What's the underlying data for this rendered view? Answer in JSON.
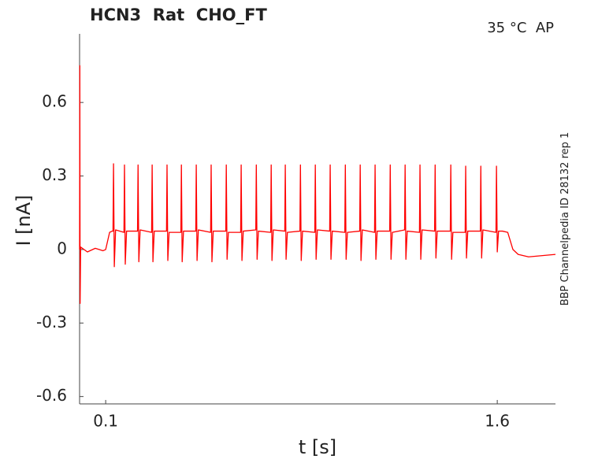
{
  "chart_data": {
    "type": "line",
    "title": "HCN3  Rat  CHO_FT",
    "subtitle": "35 °C  AP",
    "side_note": "BBP Channelpedia ID 28132 rep 1",
    "x_label": "t [s]",
    "y_label": "I [nA]",
    "color": "#ff0000",
    "xlim": [
      0,
      1.823
    ],
    "ylim": [
      -0.63,
      0.88
    ],
    "xticks": [
      0.1,
      1.6
    ],
    "yticks": [
      0.6,
      0.3,
      0,
      -0.3,
      -0.6
    ],
    "grid": false,
    "x": [
      0.0,
      0.001,
      0.002,
      0.004,
      0.03,
      0.06,
      0.09,
      0.1,
      0.115,
      0.125,
      0.128,
      0.13,
      0.133,
      0.138,
      0.17,
      0.172,
      0.175,
      0.18,
      0.222,
      0.224,
      0.227,
      0.232,
      0.276,
      0.278,
      0.281,
      0.286,
      0.333,
      0.335,
      0.338,
      0.343,
      0.388,
      0.39,
      0.393,
      0.398,
      0.445,
      0.447,
      0.45,
      0.455,
      0.502,
      0.504,
      0.507,
      0.512,
      0.56,
      0.562,
      0.565,
      0.57,
      0.617,
      0.619,
      0.622,
      0.627,
      0.675,
      0.677,
      0.68,
      0.685,
      0.732,
      0.734,
      0.737,
      0.742,
      0.786,
      0.788,
      0.791,
      0.796,
      0.844,
      0.846,
      0.849,
      0.854,
      0.901,
      0.903,
      0.906,
      0.911,
      0.958,
      0.96,
      0.963,
      0.968,
      1.016,
      1.018,
      1.021,
      1.026,
      1.073,
      1.075,
      1.078,
      1.083,
      1.13,
      1.132,
      1.135,
      1.14,
      1.188,
      1.19,
      1.193,
      1.198,
      1.245,
      1.247,
      1.25,
      1.255,
      1.302,
      1.304,
      1.307,
      1.312,
      1.36,
      1.362,
      1.365,
      1.37,
      1.42,
      1.422,
      1.425,
      1.43,
      1.477,
      1.479,
      1.482,
      1.487,
      1.535,
      1.537,
      1.54,
      1.545,
      1.595,
      1.597,
      1.6,
      1.605,
      1.62,
      1.64,
      1.66,
      1.68,
      1.72,
      1.823
    ],
    "values": [
      0.0,
      0.75,
      -0.22,
      0.01,
      -0.01,
      0.005,
      -0.005,
      0.0,
      0.07,
      0.075,
      0.075,
      0.35,
      -0.07,
      0.08,
      0.07,
      0.345,
      -0.06,
      0.075,
      0.075,
      0.345,
      -0.05,
      0.08,
      0.07,
      0.345,
      -0.05,
      0.075,
      0.075,
      0.345,
      -0.045,
      0.07,
      0.07,
      0.345,
      -0.05,
      0.075,
      0.075,
      0.345,
      -0.045,
      0.08,
      0.07,
      0.345,
      -0.05,
      0.075,
      0.075,
      0.345,
      -0.04,
      0.07,
      0.07,
      0.345,
      -0.045,
      0.075,
      0.08,
      0.345,
      -0.04,
      0.075,
      0.07,
      0.345,
      -0.045,
      0.08,
      0.075,
      0.345,
      -0.04,
      0.07,
      0.075,
      0.345,
      -0.045,
      0.075,
      0.07,
      0.345,
      -0.04,
      0.08,
      0.075,
      0.345,
      -0.04,
      0.075,
      0.07,
      0.345,
      -0.04,
      0.07,
      0.075,
      0.345,
      -0.045,
      0.08,
      0.07,
      0.345,
      -0.04,
      0.075,
      0.075,
      0.345,
      -0.04,
      0.07,
      0.08,
      0.345,
      -0.04,
      0.075,
      0.07,
      0.345,
      -0.04,
      0.08,
      0.075,
      0.345,
      -0.035,
      0.075,
      0.075,
      0.345,
      -0.04,
      0.07,
      0.07,
      0.34,
      -0.035,
      0.075,
      0.075,
      0.34,
      -0.035,
      0.08,
      0.07,
      0.34,
      -0.01,
      0.075,
      0.075,
      0.07,
      0.0,
      -0.02,
      -0.03,
      -0.02
    ]
  }
}
